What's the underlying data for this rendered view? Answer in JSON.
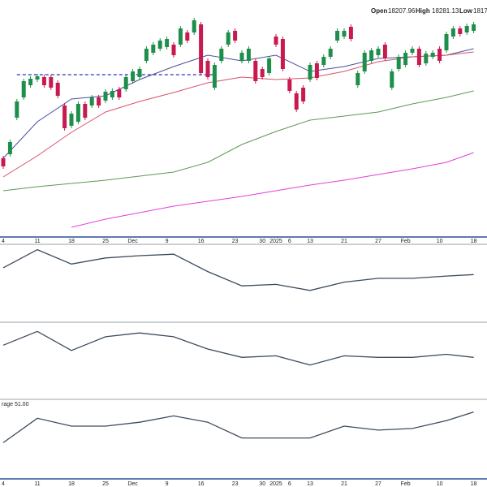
{
  "chart_data": {
    "type": "candlestick",
    "header": [
      {
        "label": "Open",
        "value": "18207.96"
      },
      {
        "label": "High",
        "value": "18281.13"
      },
      {
        "label": "Low",
        "value": "1817"
      }
    ],
    "categories": [
      "4",
      null,
      null,
      null,
      null,
      "11",
      null,
      null,
      null,
      null,
      "18",
      null,
      null,
      null,
      null,
      "25",
      null,
      null,
      null,
      "Dec",
      null,
      null,
      null,
      null,
      "9",
      null,
      null,
      null,
      null,
      "16",
      null,
      null,
      null,
      null,
      "23",
      null,
      null,
      null,
      "30",
      null,
      "2025",
      null,
      "6",
      null,
      null,
      "13",
      null,
      null,
      null,
      null,
      "21",
      null,
      null,
      null,
      null,
      "27",
      null,
      null,
      null,
      "Feb",
      null,
      null,
      null,
      null,
      "10",
      null,
      null,
      null,
      null,
      "18"
    ],
    "open": [
      16550,
      16600,
      17050,
      17300,
      17450,
      17520,
      17550,
      17550,
      17480,
      17200,
      16950,
      17000,
      17220,
      17200,
      17300,
      17260,
      17300,
      17400,
      17400,
      17500,
      17550,
      17750,
      17850,
      17900,
      17920,
      17950,
      17950,
      18100,
      18100,
      18200,
      17750,
      17420,
      17750,
      17950,
      18120,
      17750,
      17750,
      17750,
      17650,
      17600,
      18050,
      18020,
      17520,
      17350,
      17420,
      17520,
      17720,
      17700,
      17800,
      18000,
      18050,
      18170,
      17450,
      17620,
      17750,
      17820,
      17950,
      17420,
      17650,
      17700,
      17850,
      17900,
      17720,
      17800,
      17900,
      17880,
      18050,
      18150,
      18100,
      18120
    ],
    "high": [
      16580,
      16780,
      17280,
      17530,
      17560,
      17590,
      17580,
      17580,
      17510,
      17230,
      17130,
      17250,
      17250,
      17330,
      17330,
      17400,
      17410,
      17430,
      17580,
      17650,
      17680,
      17930,
      17980,
      18030,
      18050,
      17980,
      18180,
      18130,
      18280,
      18230,
      17780,
      17730,
      17930,
      18130,
      18150,
      17880,
      17930,
      17780,
      17680,
      17810,
      18080,
      18050,
      17550,
      17380,
      17450,
      17730,
      17750,
      17830,
      17930,
      18150,
      18150,
      18200,
      17630,
      17880,
      17910,
      17930,
      17980,
      17650,
      17830,
      17880,
      17930,
      17930,
      17870,
      17880,
      17930,
      18110,
      18180,
      18180,
      18210,
      18230
    ],
    "low": [
      16420,
      16570,
      17020,
      17270,
      17420,
      17490,
      17420,
      17390,
      17290,
      16890,
      16920,
      16970,
      17020,
      17170,
      17170,
      17230,
      17270,
      17270,
      17370,
      17470,
      17520,
      17720,
      17820,
      17870,
      17890,
      17790,
      17920,
      17970,
      18070,
      17570,
      17520,
      17390,
      17720,
      17920,
      17970,
      17720,
      17720,
      17470,
      17520,
      17570,
      17920,
      17620,
      17350,
      17120,
      17220,
      17490,
      17510,
      17670,
      17770,
      17970,
      18020,
      17990,
      17420,
      17590,
      17720,
      17790,
      17750,
      17390,
      17620,
      17670,
      17820,
      17670,
      17690,
      17770,
      17720,
      17850,
      18020,
      18050,
      18070,
      18090
    ],
    "close": [
      16450,
      16750,
      17250,
      17500,
      17530,
      17560,
      17450,
      17420,
      17320,
      16920,
      17100,
      17220,
      17050,
      17300,
      17200,
      17370,
      17380,
      17300,
      17550,
      17620,
      17650,
      17900,
      17950,
      18000,
      18020,
      17820,
      18150,
      18000,
      18250,
      17600,
      17550,
      17700,
      17900,
      18100,
      18000,
      17850,
      17900,
      17500,
      17550,
      17780,
      17950,
      17650,
      17380,
      17150,
      17250,
      17700,
      17540,
      17800,
      17900,
      18120,
      18120,
      18020,
      17600,
      17850,
      17880,
      17900,
      17780,
      17620,
      17800,
      17850,
      17900,
      17700,
      17840,
      17850,
      17750,
      18080,
      18150,
      18080,
      18180,
      18200
    ],
    "up_color": "#1e8f4a",
    "down_color": "#c81a4e",
    "ylim": [
      15580,
      18500
    ],
    "overlays": [
      {
        "color": "#4a4f9c",
        "x": [
          0,
          5,
          10,
          15,
          20,
          25,
          30,
          35,
          40,
          45,
          50,
          55,
          60,
          65,
          69
        ],
        "values": [
          16550,
          17000,
          17280,
          17320,
          17520,
          17680,
          17820,
          17750,
          17820,
          17620,
          17680,
          17780,
          17800,
          17820,
          17900
        ]
      },
      {
        "color": "#d9506a",
        "x": [
          0,
          5,
          10,
          15,
          20,
          25,
          30,
          35,
          40,
          45,
          50,
          55,
          60,
          65,
          69
        ],
        "values": [
          16320,
          16580,
          16870,
          17120,
          17250,
          17360,
          17480,
          17550,
          17520,
          17540,
          17620,
          17740,
          17800,
          17820,
          17860
        ]
      },
      {
        "color": "#5c9a52",
        "x": [
          0,
          5,
          10,
          15,
          20,
          25,
          30,
          35,
          40,
          45,
          50,
          55,
          60,
          65,
          69
        ],
        "values": [
          16150,
          16200,
          16240,
          16280,
          16330,
          16380,
          16500,
          16720,
          16880,
          17020,
          17070,
          17120,
          17220,
          17300,
          17380
        ]
      },
      {
        "color": "#e040d8",
        "x": [
          0,
          5,
          10,
          15,
          20,
          25,
          30,
          35,
          40,
          45,
          50,
          55,
          60,
          65,
          69
        ],
        "values": [
          null,
          null,
          15700,
          15800,
          15880,
          15960,
          16020,
          16080,
          16150,
          16220,
          16280,
          16350,
          16420,
          16500,
          16620
        ]
      }
    ],
    "reference_line": {
      "value": 17580,
      "x": [
        2,
        31
      ],
      "color": "#2436b8"
    },
    "panels": [
      {
        "type": "line",
        "color": "#3c4a5c",
        "ylim": [
          0,
          100
        ],
        "x": [
          0,
          5,
          10,
          15,
          20,
          25,
          30,
          35,
          40,
          45,
          50,
          55,
          60,
          65,
          69
        ],
        "values": [
          70,
          94,
          75,
          83,
          86,
          88,
          65,
          46,
          48,
          40,
          51,
          56,
          56,
          59,
          61
        ]
      },
      {
        "type": "line",
        "color": "#3c4a5c",
        "ylim": [
          0,
          100
        ],
        "x": [
          0,
          5,
          10,
          15,
          20,
          25,
          30,
          35,
          40,
          45,
          50,
          55,
          60,
          65,
          69
        ],
        "values": [
          71,
          89,
          64,
          82,
          87,
          82,
          66,
          55,
          57,
          45,
          57,
          55,
          55,
          59,
          55
        ]
      },
      {
        "type": "line",
        "color": "#3c4a5c",
        "ylim": [
          0,
          100
        ],
        "label": "rage 51.00",
        "x": [
          0,
          5,
          10,
          15,
          20,
          25,
          30,
          35,
          40,
          45,
          50,
          55,
          60,
          65,
          69
        ],
        "values": [
          46,
          77,
          67,
          67,
          72,
          80,
          72,
          52,
          52,
          52,
          67,
          62,
          64,
          74,
          85
        ]
      }
    ]
  }
}
